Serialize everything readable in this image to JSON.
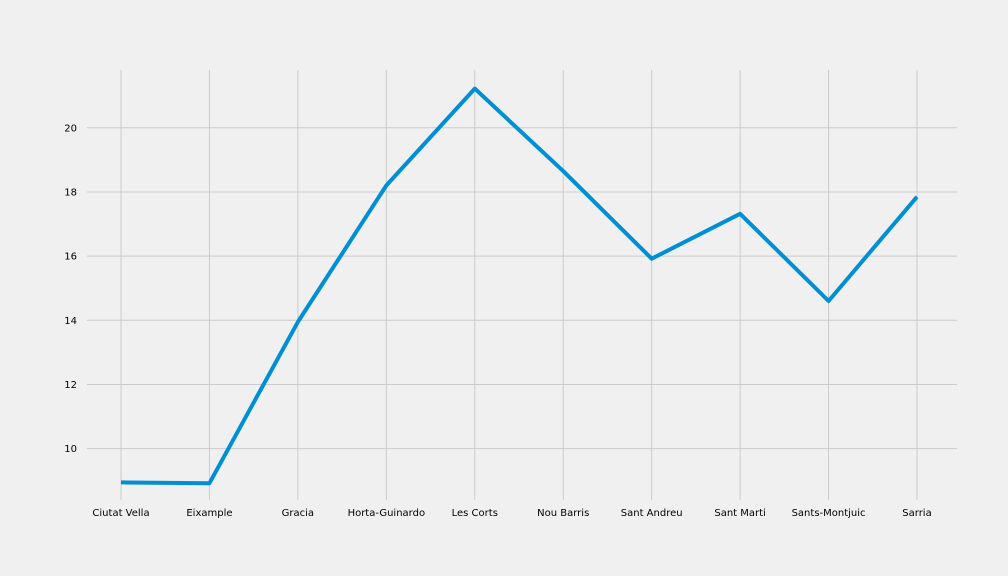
{
  "chart_data": {
    "type": "line",
    "title": "",
    "xlabel": "",
    "ylabel": "",
    "categories": [
      "Ciutat Vella",
      "Eixample",
      "Gracia",
      "Horta-Guinardo",
      "Les Corts",
      "Nou Barris",
      "Sant Andreu",
      "Sant Marti",
      "Sants-Montjuic",
      "Sarria"
    ],
    "series": [
      {
        "values": [
          8.95,
          8.92,
          13.95,
          18.2,
          21.22,
          18.65,
          15.92,
          17.32,
          14.6,
          17.85
        ],
        "color": "#008fd5"
      }
    ],
    "ylim": [
      8.4,
      21.8
    ],
    "yticks": [
      10,
      12,
      14,
      16,
      18,
      20
    ],
    "grid": true,
    "legend": "none"
  }
}
